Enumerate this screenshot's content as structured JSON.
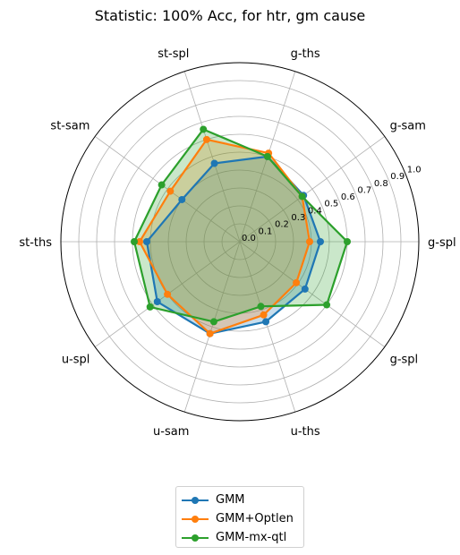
{
  "chart_data": {
    "type": "radar",
    "title": "Statistic: 100% Acc, for htr, gm cause",
    "axes": [
      "g-spl",
      "g-sam",
      "g-ths",
      "st-spl",
      "st-sam",
      "st-ths",
      "u-spl",
      "u-sam",
      "u-ths",
      "g-spl"
    ],
    "radial_ticks": [
      "0.0",
      "0.1",
      "0.2",
      "0.3",
      "0.4",
      "0.5",
      "0.6",
      "0.7",
      "0.8",
      "0.9",
      "1.0"
    ],
    "rlim": [
      0,
      1
    ],
    "grid": true,
    "legend_position": "bottom-center",
    "series": [
      {
        "name": "GMM",
        "color": "#1f77b4",
        "values": [
          0.45,
          0.44,
          0.5,
          0.46,
          0.4,
          0.52,
          0.57,
          0.54,
          0.47,
          0.45
        ]
      },
      {
        "name": "GMM+Optlen",
        "color": "#ff7f0e",
        "values": [
          0.39,
          0.43,
          0.52,
          0.6,
          0.48,
          0.56,
          0.5,
          0.54,
          0.43,
          0.39
        ]
      },
      {
        "name": "GMM-mx-qtl",
        "color": "#2ca02c",
        "values": [
          0.6,
          0.43,
          0.5,
          0.66,
          0.54,
          0.59,
          0.62,
          0.47,
          0.38,
          0.6
        ]
      }
    ]
  }
}
